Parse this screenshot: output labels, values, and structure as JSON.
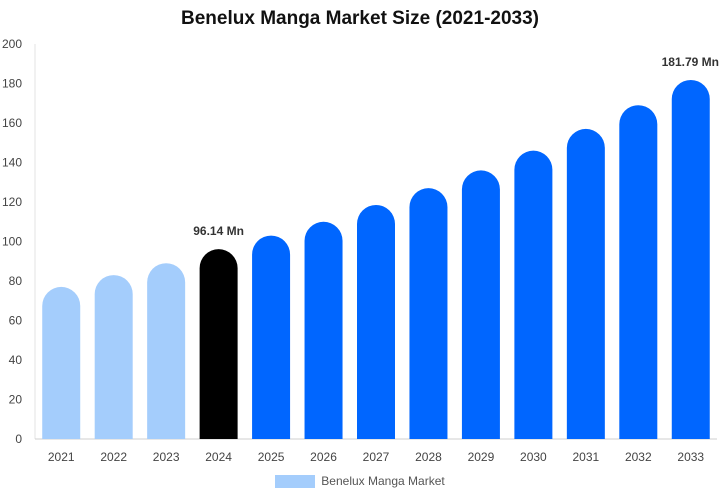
{
  "chart_data": {
    "type": "bar",
    "title": "Benelux Manga Market Size (2021-2033)",
    "xlabel": "",
    "ylabel": "",
    "categories": [
      "2021",
      "2022",
      "2023",
      "2024",
      "2025",
      "2026",
      "2027",
      "2028",
      "2029",
      "2030",
      "2031",
      "2032",
      "2033"
    ],
    "series": [
      {
        "name": "Benelux Manga Market",
        "values": [
          77,
          83,
          89,
          96.14,
          103,
          110,
          118.5,
          127,
          136,
          146,
          157,
          169,
          181.79
        ],
        "colors": [
          "#a4cdfc",
          "#a4cdfc",
          "#a4cdfc",
          "#000000",
          "#0066ff",
          "#0066ff",
          "#0066ff",
          "#0066ff",
          "#0066ff",
          "#0066ff",
          "#0066ff",
          "#0066ff",
          "#0066ff"
        ]
      }
    ],
    "ylim": [
      0,
      200
    ],
    "yticks": [
      0,
      20,
      40,
      60,
      80,
      100,
      120,
      140,
      160,
      180,
      200
    ],
    "grid": false,
    "legend": {
      "position": "bottom",
      "color": "#a4cdfc",
      "label": "Benelux Manga Market"
    },
    "annotations": [
      {
        "category": "2024",
        "text": "96.14 Mn"
      },
      {
        "category": "2033",
        "text": "181.79 Mn"
      }
    ]
  }
}
